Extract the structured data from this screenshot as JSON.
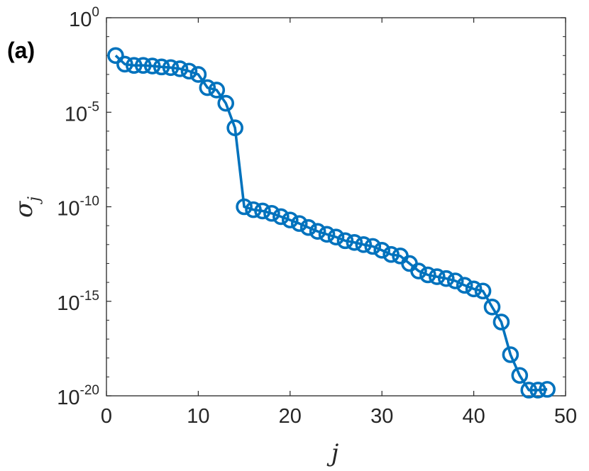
{
  "panel_label": "(a)",
  "chart_data": {
    "type": "line",
    "xlabel": "j",
    "ylabel": "σ_j",
    "ylabel_main": "σ",
    "ylabel_sub": "j",
    "yscale": "log",
    "xlim": [
      0,
      50
    ],
    "ylim": [
      1e-20,
      1
    ],
    "grid": false,
    "line_color": "#0072BD",
    "marker": "open-circle",
    "x_ticks": [
      "0",
      "10",
      "20",
      "30",
      "40",
      "50"
    ],
    "y_ticks": [
      {
        "base": "10",
        "exp": "0"
      },
      {
        "base": "10",
        "exp": "-5"
      },
      {
        "base": "10",
        "exp": "-10"
      },
      {
        "base": "10",
        "exp": "-15"
      },
      {
        "base": "10",
        "exp": "-20"
      }
    ],
    "series": [
      {
        "x": [
          1,
          2,
          3,
          4,
          5,
          6,
          7,
          8,
          9,
          10,
          11,
          12,
          13,
          14,
          15,
          16,
          17,
          18,
          19,
          20,
          21,
          22,
          23,
          24,
          25,
          26,
          27,
          28,
          29,
          30,
          31,
          32,
          33,
          34,
          35,
          36,
          37,
          38,
          39,
          40,
          41,
          42,
          43,
          44,
          45,
          46,
          47,
          48
        ],
        "y": [
          0.01,
          0.0035,
          0.003,
          0.003,
          0.0028,
          0.0025,
          0.0023,
          0.002,
          0.0015,
          0.001,
          0.0002,
          0.00015,
          3e-05,
          1.5e-06,
          1e-10,
          7e-11,
          6e-11,
          4.5e-11,
          3e-11,
          2e-11,
          1.3e-11,
          8e-12,
          5e-12,
          3.5e-12,
          2.5e-12,
          1.6e-12,
          1.3e-12,
          1e-12,
          8e-13,
          5e-13,
          3e-13,
          2.5e-13,
          1e-13,
          4e-14,
          2.5e-14,
          2e-14,
          1.6e-14,
          1.2e-14,
          7e-15,
          4.5e-15,
          3.5e-15,
          5e-16,
          8e-17,
          1.5e-18,
          1.2e-19,
          2e-20,
          2e-20,
          2.2e-20
        ]
      }
    ]
  }
}
